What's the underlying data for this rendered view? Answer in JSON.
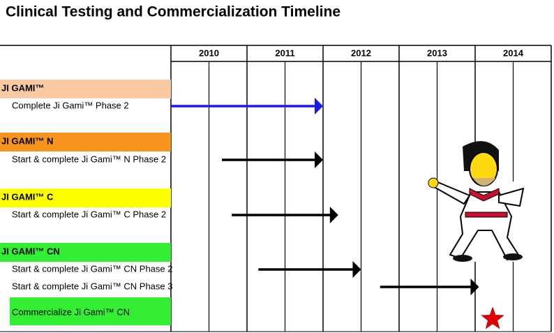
{
  "chart_data": {
    "type": "gantt",
    "title": "Clinical Testing and Commercialization Timeline",
    "years": [
      "2010",
      "2011",
      "2012",
      "2013",
      "2014"
    ],
    "xlim": [
      2010,
      2015
    ],
    "groups": [
      {
        "label": "JI GAMI™",
        "color": "#fbcaa2",
        "tasks": [
          {
            "label": "Complete Ji Gami™ Phase 2",
            "start": 2010,
            "end": 2012,
            "color": "#1a1ae6"
          }
        ]
      },
      {
        "label": "JI GAMI™ N",
        "color": "#f7941d",
        "tasks": [
          {
            "label": "Start & complete Ji Gami™ N Phase 2",
            "start": 2010.67,
            "end": 2012,
            "color": "#000000"
          }
        ]
      },
      {
        "label": "JI GAMI™ C",
        "color": "#ffff00",
        "tasks": [
          {
            "label": "Start & complete Ji Gami™ C Phase 2",
            "start": 2010.8,
            "end": 2012.2,
            "color": "#000000"
          }
        ]
      },
      {
        "label": "JI GAMI™ CN",
        "color": "#33ee33",
        "tasks": [
          {
            "label": "Start & complete Ji Gami™ CN Phase 2",
            "start": 2011.15,
            "end": 2012.5,
            "color": "#000000"
          },
          {
            "label": "Start & complete Ji Gami™ CN Phase 3",
            "start": 2012.75,
            "end": 2014.05,
            "color": "#000000"
          },
          {
            "label": "Commercialize Ji Gami™ CN",
            "milestone": 2014.23,
            "highlight": "#33ee33",
            "color": "#e00000"
          }
        ]
      }
    ]
  }
}
